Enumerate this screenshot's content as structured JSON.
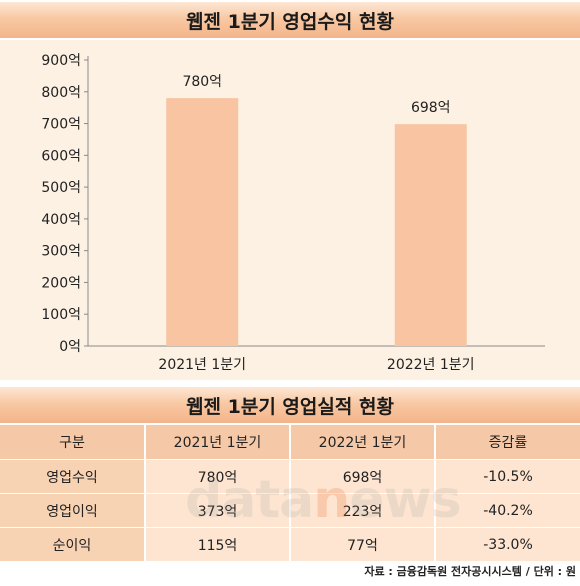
{
  "chart_title": "웹젠 1분기 영업수익 현황",
  "chart_data": {
    "type": "bar",
    "title": "웹젠 1분기 영업수익 현황",
    "categories": [
      "2021년 1분기",
      "2022년 1분기"
    ],
    "values": [
      780,
      698
    ],
    "data_labels": [
      "780억",
      "698억"
    ],
    "ylim": [
      0,
      900
    ],
    "yticks": [
      "0억",
      "100억",
      "200억",
      "300억",
      "400억",
      "500억",
      "600억",
      "700억",
      "800억",
      "900억"
    ],
    "grid": false,
    "bar_color": "#f8c4a1"
  },
  "table_title": "웹젠 1분기 영업실적 현황",
  "table": {
    "headers": [
      "구분",
      "2021년 1분기",
      "2022년 1분기",
      "증감률"
    ],
    "rows": [
      [
        "영업수익",
        "780억",
        "698억",
        "-10.5%"
      ],
      [
        "영업이익",
        "373억",
        "223억",
        "-40.2%"
      ],
      [
        "순이익",
        "115억",
        "77억",
        "-33.0%"
      ]
    ]
  },
  "watermark": "datanews",
  "source": "자료 : 금융감독원 전자공시시스템 / 단위 : 원"
}
